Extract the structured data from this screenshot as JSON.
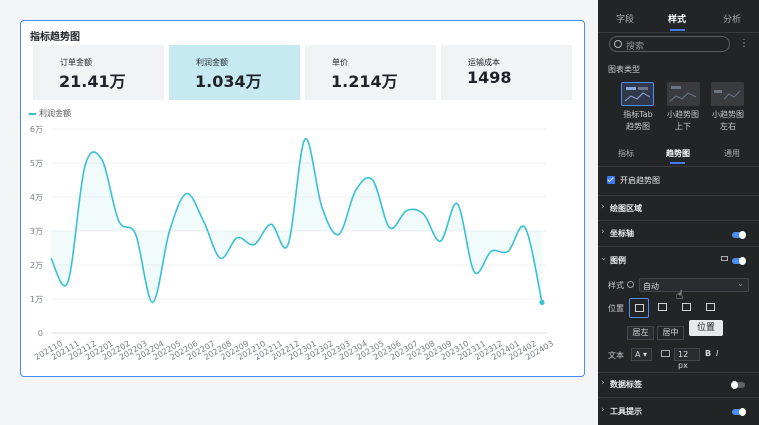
{
  "widget": {
    "title": "指标趋势图",
    "legend": "利润金额",
    "kpis": [
      {
        "label": "订单金额",
        "value": "21.41万"
      },
      {
        "label": "利润金额",
        "value": "1.034万"
      },
      {
        "label": "单价",
        "value": "1.214万"
      },
      {
        "label": "运输成本",
        "value": "1498"
      }
    ]
  },
  "chart_data": {
    "type": "line",
    "series": [
      {
        "name": "利润金额",
        "values": [
          2.2,
          1.5,
          4.9,
          5.1,
          3.3,
          2.9,
          0.9,
          3.0,
          4.1,
          3.3,
          2.2,
          2.8,
          2.6,
          3.2,
          2.6,
          5.7,
          3.7,
          2.9,
          4.2,
          4.5,
          3.1,
          3.6,
          3.5,
          2.7,
          3.8,
          1.8,
          2.4,
          2.4,
          3.1,
          0.9
        ]
      }
    ],
    "categories": [
      "202110",
      "202111",
      "202112",
      "202201",
      "202202",
      "202203",
      "202204",
      "202205",
      "202206",
      "202207",
      "202208",
      "202209",
      "202210",
      "202211",
      "202212",
      "202301",
      "202302",
      "202303",
      "202304",
      "202305",
      "202306",
      "202307",
      "202308",
      "202309",
      "202310",
      "202311",
      "202312",
      "202401",
      "202402",
      "202403"
    ],
    "y_ticks": [
      "0",
      "1万",
      "2万",
      "3万",
      "4万",
      "5万",
      "6万"
    ],
    "ylim": [
      0,
      6
    ],
    "color": "#3ac0d5"
  },
  "panel": {
    "top_tabs": [
      "字段",
      "样式",
      "分析"
    ],
    "search_placeholder": "搜索",
    "more": "⋮",
    "chart_type_label": "图表类型",
    "chart_types": [
      "指标Tab\n趋势图",
      "小趋势图\n上下",
      "小趋势图\n左右"
    ],
    "sub_tabs": [
      "指标",
      "趋势图",
      "通用"
    ],
    "enable_trend": "开启趋势图",
    "sections": {
      "plot_area": "绘图区域",
      "axis": "坐标轴",
      "legend": "图例",
      "data_label": "数据标签",
      "tooltip": "工具提示"
    },
    "style_label": "样式",
    "style_value": "自动",
    "position_label": "位置",
    "align_left": "居左",
    "align_center": "居中",
    "tooltip_text": "位置",
    "text_label": "文本",
    "font_letter": "A",
    "font_size": "12",
    "font_unit": "px",
    "bold": "B",
    "italic": "I",
    "accent": "#4a8df6"
  }
}
